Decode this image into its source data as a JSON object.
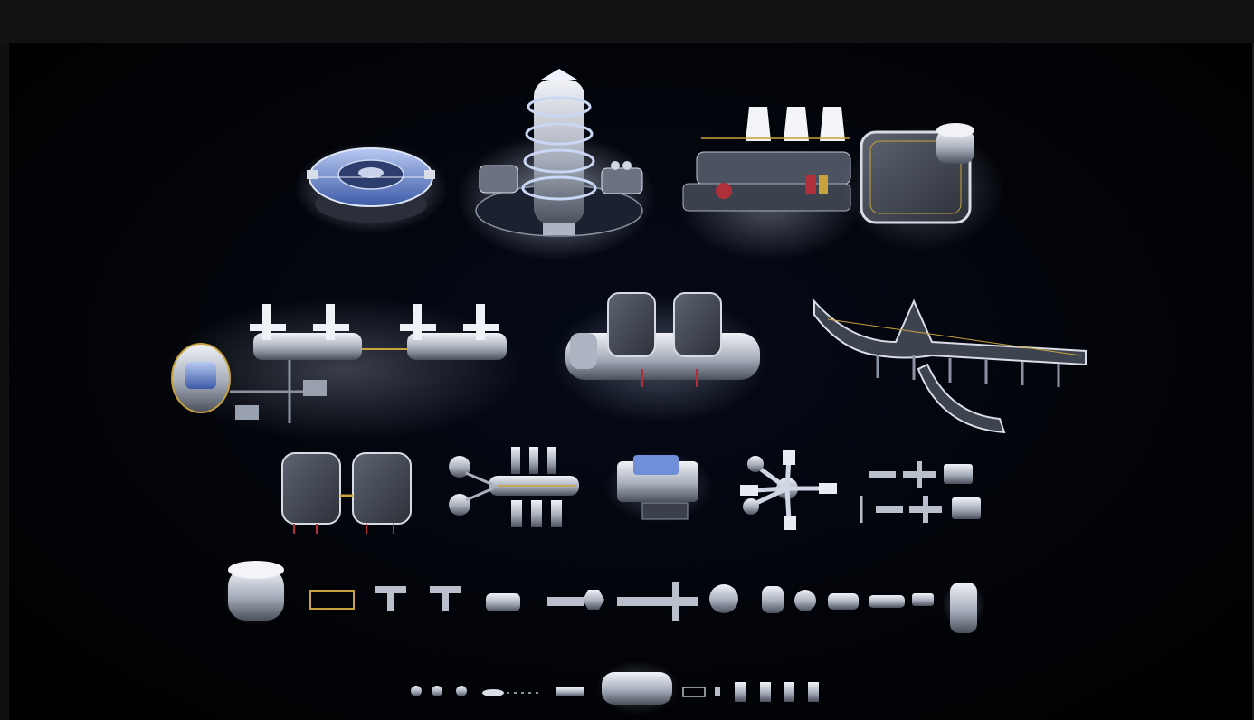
{
  "image": {
    "description_free": true,
    "colors": {
      "frame": "#121212",
      "backdrop": "#000000",
      "metal_light": "#d9dde6",
      "metal_mid": "#8b93a3",
      "metal_dark": "#3a3f4a",
      "glass_blue": "#6f8fd8",
      "glow_white": "#eef3ff",
      "accent_yellow": "#c8a23a",
      "accent_red": "#b0303a"
    }
  }
}
